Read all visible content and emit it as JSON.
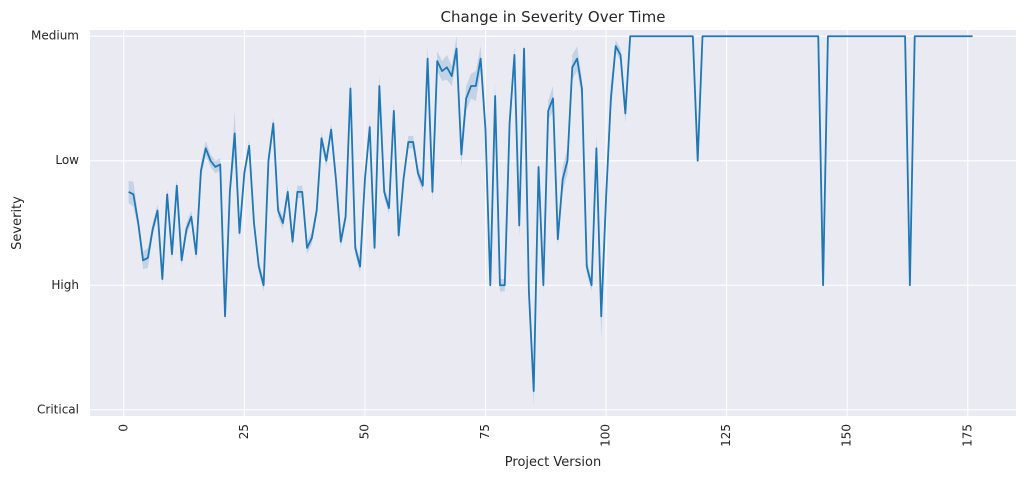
{
  "chart_data": {
    "type": "line",
    "title": "Change in Severity Over Time",
    "xlabel": "Project Version",
    "ylabel": "Severity",
    "xlim": [
      -7,
      185
    ],
    "ylim": [
      -0.05,
      3.05
    ],
    "x_ticks": [
      0,
      25,
      50,
      75,
      100,
      125,
      150,
      175
    ],
    "y_tick_values": [
      0,
      1,
      2,
      3
    ],
    "y_tick_labels": [
      "Critical",
      "High",
      "Low",
      "Medium"
    ],
    "grid": true,
    "background_color": "#eaeaf2",
    "line_color": "#1f77b4",
    "series": [
      {
        "x": [
          1,
          2,
          3,
          4,
          5,
          6,
          7,
          8,
          9,
          10,
          11,
          12,
          13,
          14,
          15,
          16,
          17,
          18,
          19,
          20,
          21,
          22,
          23,
          24,
          25,
          26,
          27,
          28,
          29,
          30,
          31,
          32,
          33,
          34,
          35,
          36,
          37,
          38,
          39,
          40,
          41,
          42,
          43,
          44,
          45,
          46,
          47,
          48,
          49,
          50,
          51,
          52,
          53,
          54,
          55,
          56,
          57,
          58,
          59,
          60,
          61,
          62,
          63,
          64,
          65,
          66,
          67,
          68,
          69,
          70,
          71,
          72,
          73,
          74,
          75,
          76,
          77,
          78,
          79,
          80,
          81,
          82,
          83,
          84,
          85,
          86,
          87,
          88,
          89,
          90,
          91,
          92,
          93,
          94,
          95,
          96,
          97,
          98,
          99,
          100,
          101,
          102,
          103,
          104,
          105,
          106,
          107,
          108,
          109,
          110,
          111,
          112,
          113,
          114,
          115,
          116,
          117,
          118,
          119,
          120,
          121,
          122,
          123,
          124,
          125,
          126,
          127,
          128,
          129,
          130,
          131,
          132,
          133,
          134,
          135,
          136,
          137,
          138,
          139,
          140,
          141,
          142,
          143,
          144,
          145,
          146,
          147,
          148,
          149,
          150,
          151,
          152,
          153,
          154,
          155,
          156,
          157,
          158,
          159,
          160,
          161,
          162,
          163,
          164,
          165,
          166,
          167,
          168,
          169,
          170,
          171,
          172,
          173,
          174,
          175,
          176
        ],
        "y": [
          1.75,
          1.73,
          1.5,
          1.2,
          1.22,
          1.45,
          1.6,
          1.05,
          1.73,
          1.25,
          1.8,
          1.2,
          1.45,
          1.55,
          1.25,
          1.92,
          2.1,
          2.0,
          1.95,
          1.97,
          0.75,
          1.75,
          2.22,
          1.42,
          1.9,
          2.12,
          1.5,
          1.15,
          1.0,
          2.0,
          2.3,
          1.6,
          1.5,
          1.75,
          1.35,
          1.75,
          1.75,
          1.3,
          1.38,
          1.6,
          2.18,
          2.0,
          2.25,
          1.85,
          1.35,
          1.55,
          2.58,
          1.3,
          1.15,
          1.85,
          2.27,
          1.3,
          2.6,
          1.75,
          1.62,
          2.4,
          1.4,
          1.85,
          2.15,
          2.15,
          1.9,
          1.8,
          2.82,
          1.75,
          2.8,
          2.72,
          2.75,
          2.68,
          2.9,
          2.05,
          2.5,
          2.6,
          2.6,
          2.82,
          2.25,
          1.0,
          2.52,
          1.0,
          1.0,
          2.3,
          2.85,
          1.48,
          2.9,
          0.95,
          0.15,
          1.95,
          1.0,
          2.4,
          2.5,
          1.37,
          1.85,
          2.0,
          2.75,
          2.82,
          2.58,
          1.15,
          1.0,
          2.1,
          0.75,
          1.7,
          2.5,
          2.92,
          2.85,
          2.38,
          3.0,
          3.0,
          3.0,
          3.0,
          3.0,
          3.0,
          3.0,
          3.0,
          3.0,
          3.0,
          3.0,
          3.0,
          3.0,
          3.0,
          2.0,
          3.0,
          3.0,
          3.0,
          3.0,
          3.0,
          3.0,
          3.0,
          3.0,
          3.0,
          3.0,
          3.0,
          3.0,
          3.0,
          3.0,
          3.0,
          3.0,
          3.0,
          3.0,
          3.0,
          3.0,
          3.0,
          3.0,
          3.0,
          3.0,
          3.0,
          1.0,
          3.0,
          3.0,
          3.0,
          3.0,
          3.0,
          3.0,
          3.0,
          3.0,
          3.0,
          3.0,
          3.0,
          3.0,
          3.0,
          3.0,
          3.0,
          3.0,
          3.0,
          1.0,
          3.0,
          3.0,
          3.0,
          3.0,
          3.0,
          3.0,
          3.0,
          3.0,
          3.0,
          3.0,
          3.0,
          3.0,
          3.0
        ],
        "ci_halfwidth": [
          0.09,
          0.1,
          0.05,
          0.07,
          0.08,
          0.05,
          0.05,
          0.05,
          0.05,
          0.05,
          0.05,
          0.05,
          0.05,
          0.05,
          0.05,
          0.06,
          0.06,
          0.05,
          0.05,
          0.05,
          0.05,
          0.05,
          0.18,
          0.05,
          0.05,
          0.05,
          0.05,
          0.05,
          0.05,
          0.05,
          0.05,
          0.05,
          0.05,
          0.05,
          0.05,
          0.05,
          0.05,
          0.05,
          0.05,
          0.05,
          0.05,
          0.05,
          0.05,
          0.05,
          0.05,
          0.05,
          0.08,
          0.05,
          0.05,
          0.05,
          0.05,
          0.05,
          0.1,
          0.05,
          0.05,
          0.07,
          0.05,
          0.05,
          0.05,
          0.05,
          0.05,
          0.05,
          0.1,
          0.08,
          0.08,
          0.08,
          0.1,
          0.08,
          0.1,
          0.1,
          0.1,
          0.1,
          0.12,
          0.1,
          0.05,
          0.05,
          0.1,
          0.05,
          0.05,
          0.1,
          0.08,
          0.1,
          0.05,
          0.1,
          0.12,
          0.05,
          0.05,
          0.08,
          0.1,
          0.05,
          0.1,
          0.1,
          0.1,
          0.1,
          0.08,
          0.05,
          0.05,
          0.1,
          0.18,
          0.12,
          0.12,
          0.05,
          0.05,
          0.08,
          0,
          0,
          0,
          0,
          0,
          0,
          0,
          0,
          0,
          0,
          0,
          0,
          0,
          0,
          0,
          0,
          0,
          0,
          0,
          0,
          0,
          0,
          0,
          0,
          0,
          0,
          0,
          0,
          0,
          0,
          0,
          0,
          0,
          0,
          0,
          0,
          0,
          0,
          0,
          0,
          0,
          0,
          0,
          0,
          0,
          0,
          0,
          0,
          0,
          0,
          0,
          0,
          0,
          0,
          0,
          0,
          0,
          0,
          0,
          0,
          0,
          0,
          0,
          0,
          0,
          0,
          0,
          0,
          0,
          0,
          0,
          0,
          0,
          0,
          0,
          0
        ]
      }
    ]
  }
}
